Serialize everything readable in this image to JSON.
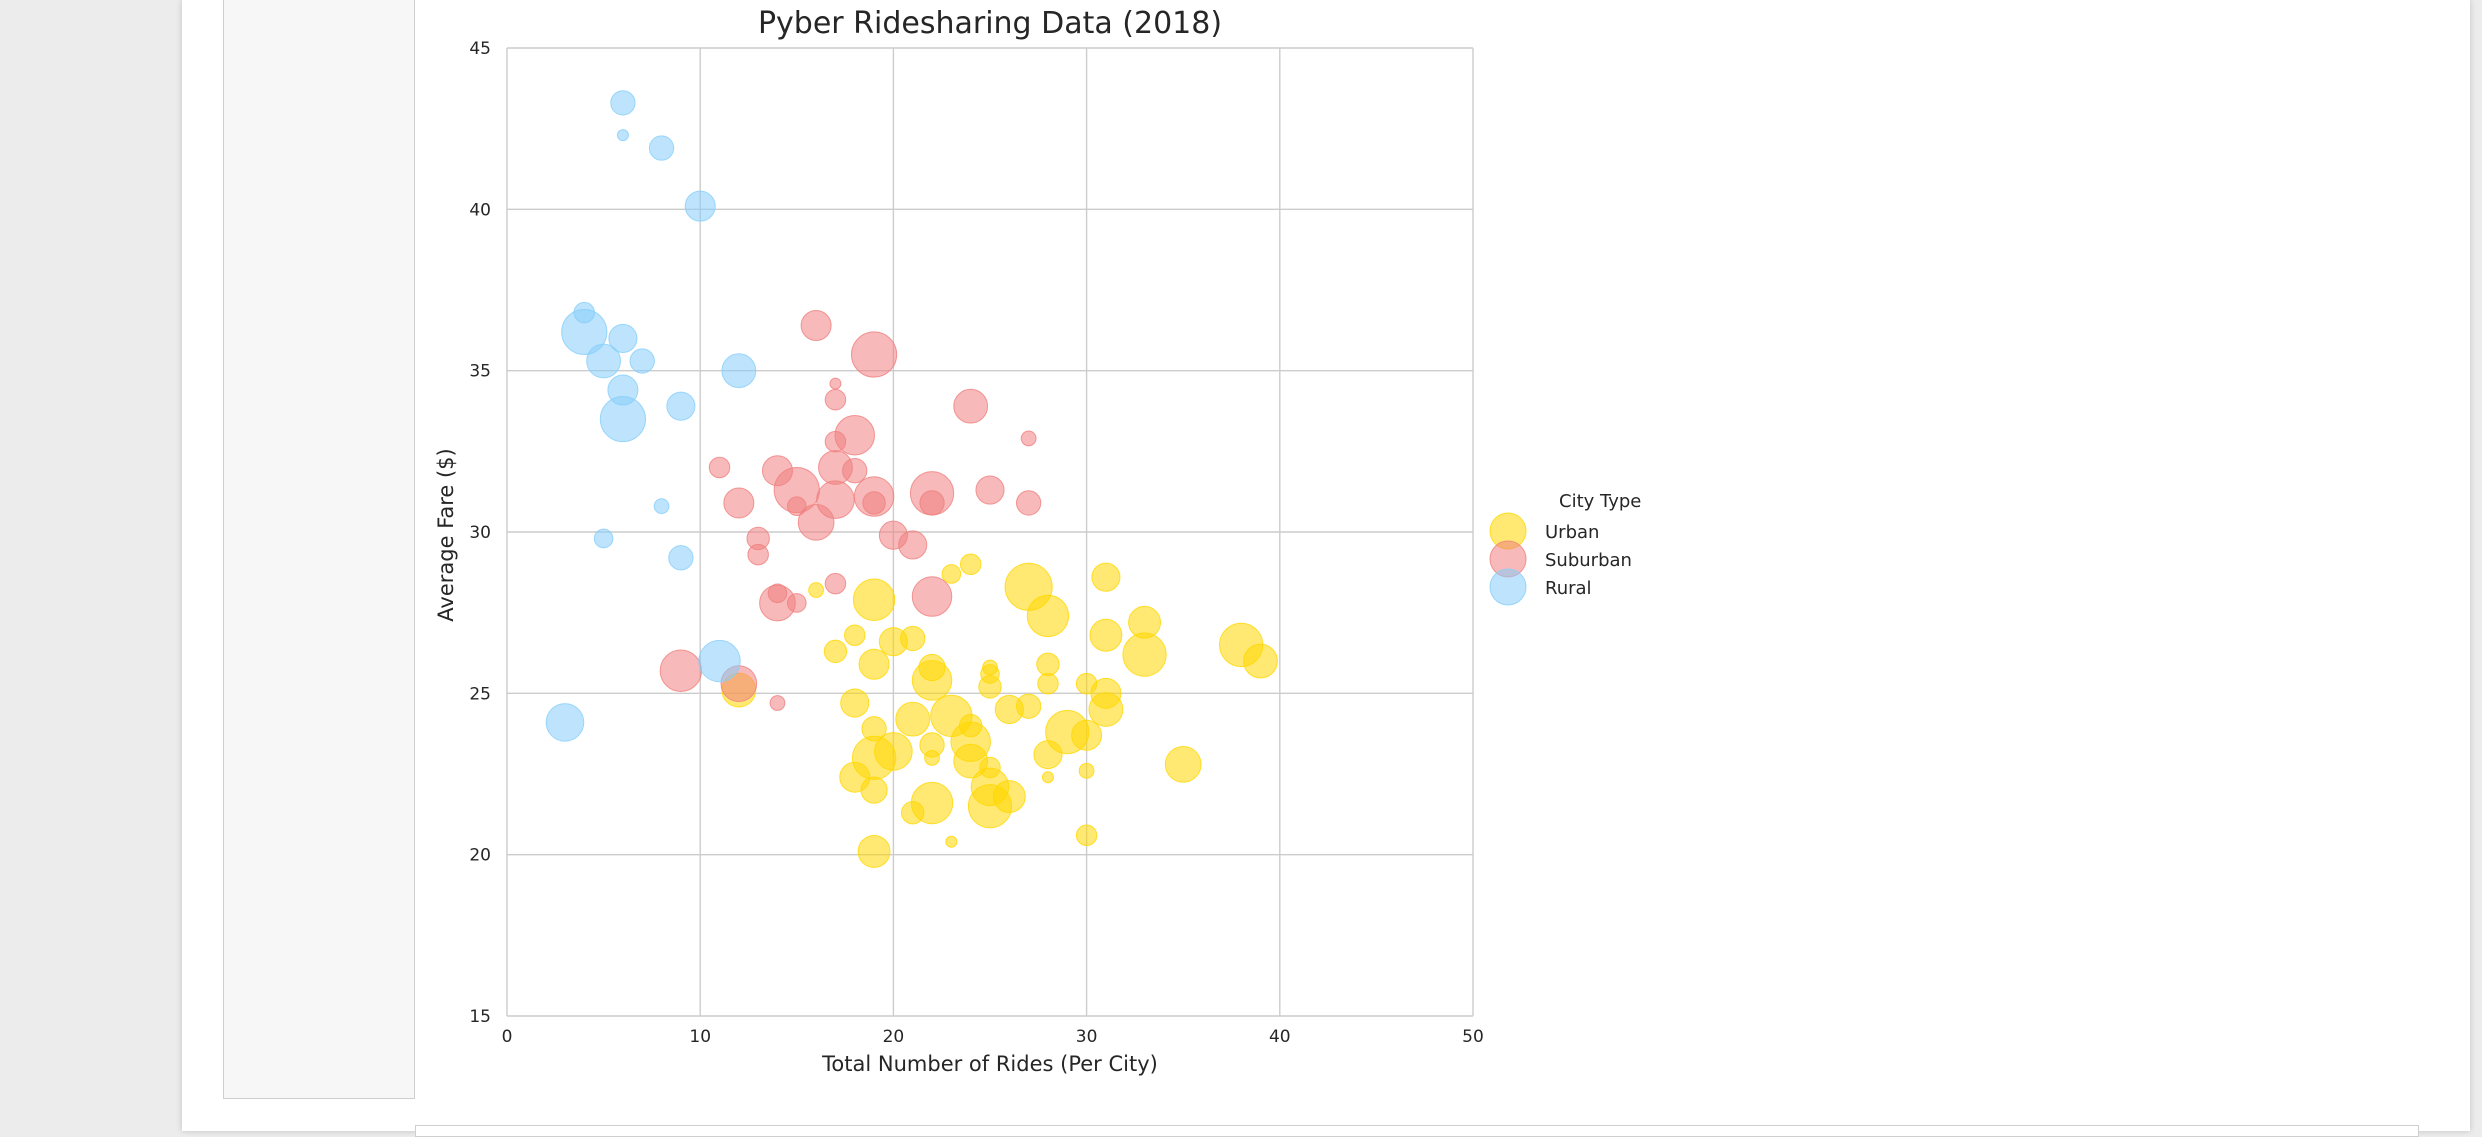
{
  "chart_data": {
    "type": "scatter",
    "title": "Pyber Ridesharing Data (2018)",
    "xlabel": "Total Number of Rides (Per City)",
    "ylabel": "Average Fare ($)",
    "xlim": [
      0,
      50
    ],
    "ylim": [
      15,
      45
    ],
    "xticks": [
      0,
      10,
      20,
      30,
      40,
      50
    ],
    "yticks": [
      15,
      20,
      25,
      30,
      35,
      40,
      45
    ],
    "grid": true,
    "legend": {
      "title": "City Type",
      "placement": "outside-right"
    },
    "series": [
      {
        "name": "Urban",
        "color": "#ffd700",
        "points": [
          [
            16,
            28.2,
            4
          ],
          [
            19,
            27.9,
            18
          ],
          [
            20,
            26.6,
            11
          ],
          [
            21,
            26.7,
            9
          ],
          [
            18,
            26.8,
            7
          ],
          [
            17,
            26.3,
            8
          ],
          [
            22,
            25.8,
            10
          ],
          [
            24,
            29.0,
            7
          ],
          [
            23,
            28.7,
            6
          ],
          [
            27,
            28.3,
            21
          ],
          [
            28,
            27.4,
            18
          ],
          [
            31,
            28.6,
            11
          ],
          [
            33,
            27.2,
            13
          ],
          [
            38,
            26.5,
            19
          ],
          [
            39,
            26.0,
            14
          ],
          [
            33,
            26.2,
            19
          ],
          [
            31,
            26.8,
            13
          ],
          [
            28,
            25.9,
            8
          ],
          [
            28,
            25.3,
            7
          ],
          [
            25,
            25.6,
            6
          ],
          [
            25,
            25.2,
            8
          ],
          [
            25,
            25.8,
            4
          ],
          [
            26,
            24.5,
            11
          ],
          [
            27,
            24.6,
            9
          ],
          [
            19,
            25.9,
            12
          ],
          [
            18,
            24.7,
            11
          ],
          [
            22,
            25.4,
            17
          ],
          [
            23,
            24.3,
            18
          ],
          [
            24,
            24.0,
            8
          ],
          [
            21,
            24.2,
            14
          ],
          [
            19,
            23.9,
            9
          ],
          [
            20,
            23.2,
            16
          ],
          [
            19,
            23.0,
            19
          ],
          [
            22,
            23.4,
            9
          ],
          [
            22,
            23.0,
            4
          ],
          [
            24,
            23.5,
            17
          ],
          [
            24,
            22.9,
            14
          ],
          [
            25,
            22.7,
            7
          ],
          [
            25,
            22.1,
            16
          ],
          [
            25,
            21.5,
            19
          ],
          [
            26,
            21.8,
            13
          ],
          [
            22,
            21.6,
            18
          ],
          [
            21,
            21.3,
            8
          ],
          [
            19,
            22.0,
            10
          ],
          [
            18,
            22.4,
            12
          ],
          [
            29,
            23.8,
            19
          ],
          [
            30,
            23.7,
            12
          ],
          [
            30,
            25.3,
            7
          ],
          [
            31,
            25.0,
            12
          ],
          [
            31,
            24.5,
            14
          ],
          [
            28,
            23.1,
            11
          ],
          [
            30,
            22.6,
            4
          ],
          [
            28,
            22.4,
            2
          ],
          [
            35,
            22.8,
            15
          ],
          [
            30,
            20.6,
            7
          ],
          [
            19,
            20.1,
            13
          ],
          [
            23,
            20.4,
            2
          ],
          [
            12,
            25.1,
            14
          ]
        ]
      },
      {
        "name": "Suburban",
        "color": "#f08080",
        "points": [
          [
            16,
            36.4,
            12
          ],
          [
            19,
            35.5,
            20
          ],
          [
            17,
            34.6,
            2
          ],
          [
            17,
            34.1,
            7
          ],
          [
            24,
            33.9,
            14
          ],
          [
            27,
            32.9,
            4
          ],
          [
            18,
            33.0,
            17
          ],
          [
            17,
            32.8,
            7
          ],
          [
            17,
            32.0,
            14
          ],
          [
            18,
            31.9,
            9
          ],
          [
            19,
            31.1,
            17
          ],
          [
            19,
            30.9,
            8
          ],
          [
            14,
            31.9,
            12
          ],
          [
            15,
            31.3,
            20
          ],
          [
            17,
            31.0,
            16
          ],
          [
            22,
            31.2,
            19
          ],
          [
            22,
            30.9,
            9
          ],
          [
            25,
            31.3,
            11
          ],
          [
            27,
            30.9,
            9
          ],
          [
            11,
            32.0,
            7
          ],
          [
            12,
            30.9,
            12
          ],
          [
            15,
            30.8,
            6
          ],
          [
            16,
            30.3,
            15
          ],
          [
            13,
            29.8,
            8
          ],
          [
            13,
            29.3,
            7
          ],
          [
            20,
            29.9,
            11
          ],
          [
            21,
            29.6,
            11
          ],
          [
            17,
            28.4,
            7
          ],
          [
            22,
            28.0,
            17
          ],
          [
            14,
            27.8,
            15
          ],
          [
            14,
            28.1,
            6
          ],
          [
            15,
            27.8,
            6
          ],
          [
            9,
            25.7,
            18
          ],
          [
            12,
            25.3,
            15
          ],
          [
            14,
            24.7,
            4
          ]
        ]
      },
      {
        "name": "Rural",
        "color": "#87cefa",
        "points": [
          [
            6,
            43.3,
            9
          ],
          [
            6,
            42.3,
            2
          ],
          [
            8,
            41.9,
            9
          ],
          [
            10,
            40.1,
            12
          ],
          [
            4,
            36.8,
            7
          ],
          [
            4,
            36.2,
            20
          ],
          [
            6,
            36.0,
            11
          ],
          [
            5,
            35.3,
            14
          ],
          [
            7,
            35.3,
            9
          ],
          [
            6,
            34.4,
            12
          ],
          [
            12,
            35.0,
            14
          ],
          [
            6,
            33.5,
            20
          ],
          [
            9,
            33.9,
            11
          ],
          [
            8,
            30.8,
            4
          ],
          [
            5,
            29.8,
            6
          ],
          [
            9,
            29.2,
            9
          ],
          [
            11,
            26.0,
            18
          ],
          [
            3,
            24.1,
            16
          ]
        ]
      }
    ]
  }
}
